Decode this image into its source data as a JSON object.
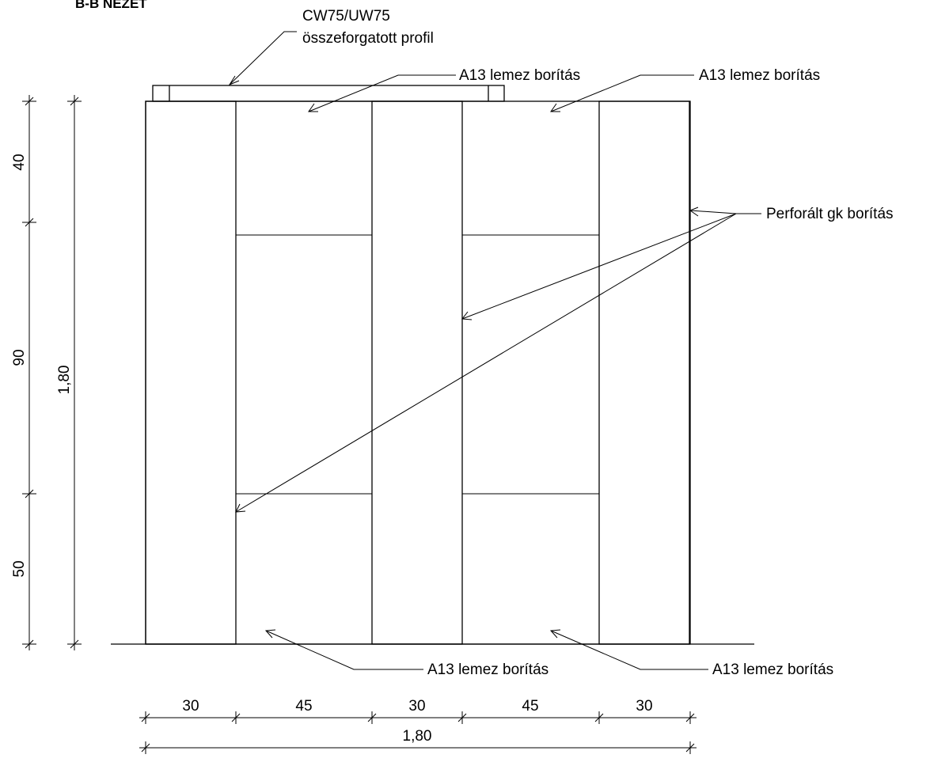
{
  "drawing": {
    "title": "B-B NÉZET",
    "profile_label_line1": "CW75/UW75",
    "profile_label_line2": "összeforgatott profil",
    "top_label_1": "A13 lemez borítás",
    "top_label_2": "A13 lemez borítás",
    "perforated_label": "Perforált gk borítás",
    "bottom_label_1": "A13 lemez borítás",
    "bottom_label_2": "A13 lemez borítás"
  },
  "dimensions": {
    "vertical_segments": [
      "40",
      "90",
      "50"
    ],
    "vertical_total": "1,80",
    "horizontal_segments": [
      "30",
      "45",
      "30",
      "45",
      "30"
    ],
    "horizontal_total": "1,80"
  }
}
